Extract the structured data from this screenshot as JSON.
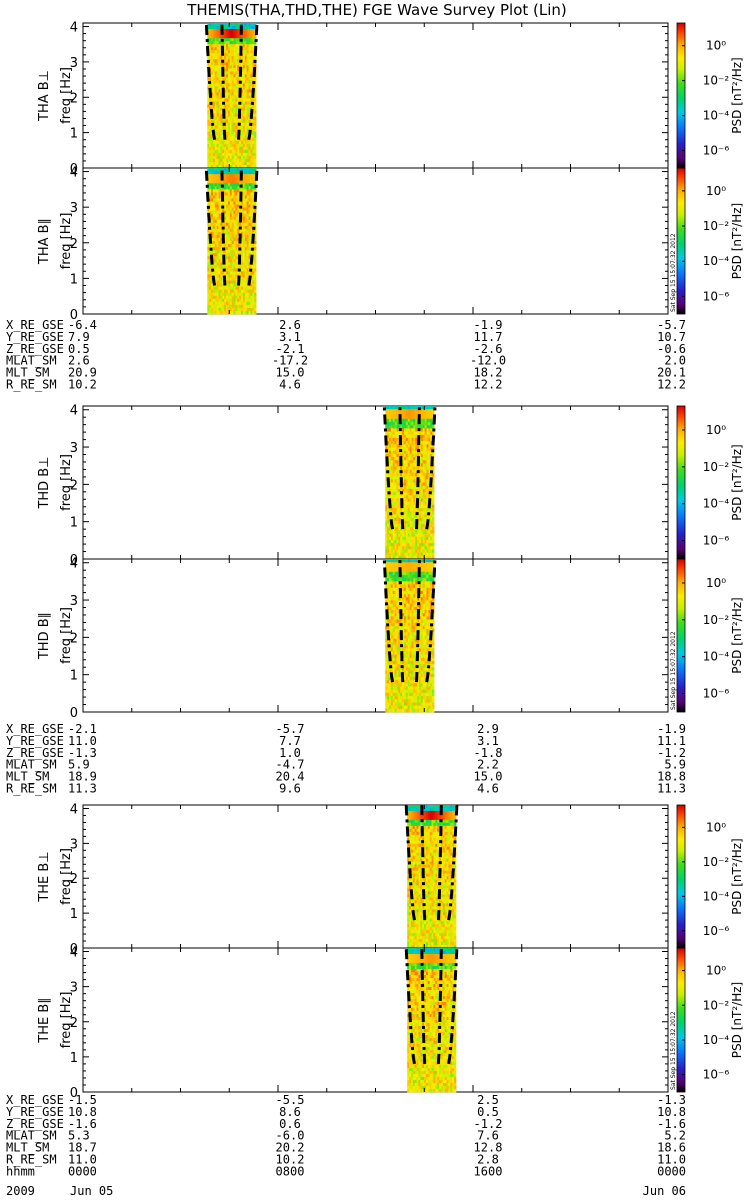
{
  "title": "THEMIS(THA,THD,THE) FGE Wave Survey Plot (Lin)",
  "stamp": "Sat Sep 15 15:07:32 2012",
  "colorbar": {
    "label": "PSD [nT²/Hz]",
    "ticks": [
      "10⁰",
      "10⁻²",
      "10⁻⁴",
      "10⁻⁶"
    ],
    "log_values": [
      0,
      -2,
      -4,
      -6
    ],
    "range_log": [
      -7,
      1.3
    ]
  },
  "freq_ticks": [
    "0",
    "1",
    "2",
    "3",
    "4"
  ],
  "panels": [
    {
      "probe_label": "THA B⊥",
      "ylabel": "freq [Hz]",
      "data_start_hour": 5.1,
      "data_end_hour": 7.1,
      "peak_freq": 0.3,
      "peak_strength": 1.0
    },
    {
      "probe_label": "THA B∥",
      "ylabel": "freq [Hz]",
      "data_start_hour": 5.1,
      "data_end_hour": 7.1,
      "peak_freq": 0.3,
      "peak_strength": 0.5
    },
    {
      "probe_label": "THD B⊥",
      "ylabel": "freq [Hz]",
      "data_start_hour": 12.4,
      "data_end_hour": 14.4,
      "peak_freq": 0.2,
      "peak_strength": 0.4
    },
    {
      "probe_label": "THD B∥",
      "ylabel": "freq [Hz]",
      "data_start_hour": 12.4,
      "data_end_hour": 14.4,
      "peak_freq": 0.2,
      "peak_strength": 0.3
    },
    {
      "probe_label": "THE B⊥",
      "ylabel": "freq [Hz]",
      "data_start_hour": 13.3,
      "data_end_hour": 15.3,
      "peak_freq": 0.3,
      "peak_strength": 1.0
    },
    {
      "probe_label": "THE B∥",
      "ylabel": "freq [Hz]",
      "data_start_hour": 13.3,
      "data_end_hour": 15.3,
      "peak_freq": 0.3,
      "peak_strength": 0.4
    }
  ],
  "ephemeris_blocks": [
    {
      "rows": [
        {
          "name": "X_RE_GSE",
          "values": [
            "-6.4",
            "2.6",
            "-1.9",
            "-5.7"
          ]
        },
        {
          "name": "Y_RE_GSE",
          "values": [
            "7.9",
            "3.1",
            "11.7",
            "10.7"
          ]
        },
        {
          "name": "Z_RE_GSE",
          "values": [
            "0.5",
            "-2.1",
            "-2.6",
            "-0.6"
          ]
        },
        {
          "name": "MLAT_SM",
          "values": [
            "2.6",
            "-17.2",
            "-12.0",
            "2.0"
          ]
        },
        {
          "name": "MLT_SM",
          "values": [
            "20.9",
            "15.0",
            "18.2",
            "20.1"
          ]
        },
        {
          "name": "R_RE_SM",
          "values": [
            "10.2",
            "4.6",
            "12.2",
            "12.2"
          ]
        }
      ]
    },
    {
      "rows": [
        {
          "name": "X_RE_GSE",
          "values": [
            "-2.1",
            "-5.7",
            "2.9",
            "-1.9"
          ]
        },
        {
          "name": "Y_RE_GSE",
          "values": [
            "11.0",
            "7.7",
            "3.1",
            "11.1"
          ]
        },
        {
          "name": "Z_RE_GSE",
          "values": [
            "-1.3",
            "1.0",
            "-1.8",
            "-1.2"
          ]
        },
        {
          "name": "MLAT_SM",
          "values": [
            "5.9",
            "-4.7",
            "2.2",
            "5.9"
          ]
        },
        {
          "name": "MLT_SM",
          "values": [
            "18.9",
            "20.4",
            "15.0",
            "18.8"
          ]
        },
        {
          "name": "R_RE_SM",
          "values": [
            "11.3",
            "9.6",
            "4.6",
            "11.3"
          ]
        }
      ]
    },
    {
      "rows": [
        {
          "name": "X_RE_GSE",
          "values": [
            "-1.5",
            "-5.5",
            "2.5",
            "-1.3"
          ]
        },
        {
          "name": "Y_RE_GSE",
          "values": [
            "10.8",
            "8.6",
            "0.5",
            "10.8"
          ]
        },
        {
          "name": "Z_RE_GSE",
          "values": [
            "-1.6",
            "0.6",
            "-1.2",
            "-1.6"
          ]
        },
        {
          "name": "MLAT_SM",
          "values": [
            "5.3",
            "-6.0",
            "7.6",
            "5.2"
          ]
        },
        {
          "name": "MLT_SM",
          "values": [
            "18.7",
            "20.2",
            "12.8",
            "18.6"
          ]
        },
        {
          "name": "R_RE_SM",
          "values": [
            "11.0",
            "10.2",
            "2.8",
            "11.0"
          ]
        },
        {
          "name": "hhmm",
          "values": [
            "0000",
            "0800",
            "1600",
            "0000"
          ]
        }
      ]
    }
  ],
  "date_row": {
    "year": "2009",
    "start": "Jun 05",
    "end": "Jun 06"
  },
  "chart_data": {
    "type": "heatmap",
    "title": "THEMIS(THA,THD,THE) FGE Wave Survey Plot (Lin)",
    "x": {
      "label": "hhmm",
      "ticks": [
        "0000",
        "0800",
        "1600",
        "0000"
      ],
      "range_hours": [
        0,
        24
      ]
    },
    "y": {
      "label": "freq [Hz]",
      "range": [
        0,
        4.1
      ],
      "ticks": [
        0,
        1,
        2,
        3,
        4
      ]
    },
    "z": {
      "label": "PSD [nT²/Hz]",
      "scale": "log",
      "ticks": [
        "10⁰",
        "10⁻²",
        "10⁻⁴",
        "10⁻⁶"
      ]
    },
    "panels": [
      "THA B⊥",
      "THA B∥",
      "THD B⊥",
      "THD B∥",
      "THE B⊥",
      "THE B∥"
    ]
  },
  "colors": {
    "axis": "#000000",
    "dashline": "#000000"
  }
}
